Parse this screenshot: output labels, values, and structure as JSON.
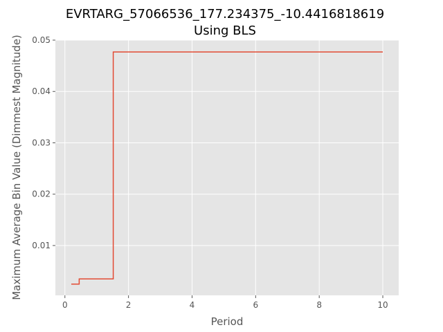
{
  "chart_data": {
    "type": "line",
    "title": "EVRTARG_57066536_177.234375_-10.4416818619",
    "subtitle": "Using BLS",
    "xlabel": "Period",
    "ylabel": "Maximum Average Bin Value (Dimmest Magnitude)",
    "xlim": [
      -0.3,
      10.5
    ],
    "ylim": [
      0.0003,
      0.05
    ],
    "x_ticks": [
      0,
      2,
      4,
      6,
      8,
      10
    ],
    "x_tick_labels": [
      "0",
      "2",
      "4",
      "6",
      "8",
      "10"
    ],
    "y_ticks": [
      0.01,
      0.02,
      0.03,
      0.04,
      0.05
    ],
    "y_tick_labels": [
      "0.01",
      "0.02",
      "0.03",
      "0.04",
      "0.05"
    ],
    "grid": true,
    "style": "step",
    "series": [
      {
        "color": "#e24a33",
        "x": [
          0.2,
          0.45,
          0.45,
          1.52,
          1.52,
          10.0
        ],
        "y": [
          0.0025,
          0.0025,
          0.0035,
          0.0035,
          0.0477,
          0.0477
        ]
      }
    ]
  },
  "colors": {
    "plot_background": "#e5e5e5",
    "grid": "#ffffff",
    "line": "#e24a33"
  }
}
